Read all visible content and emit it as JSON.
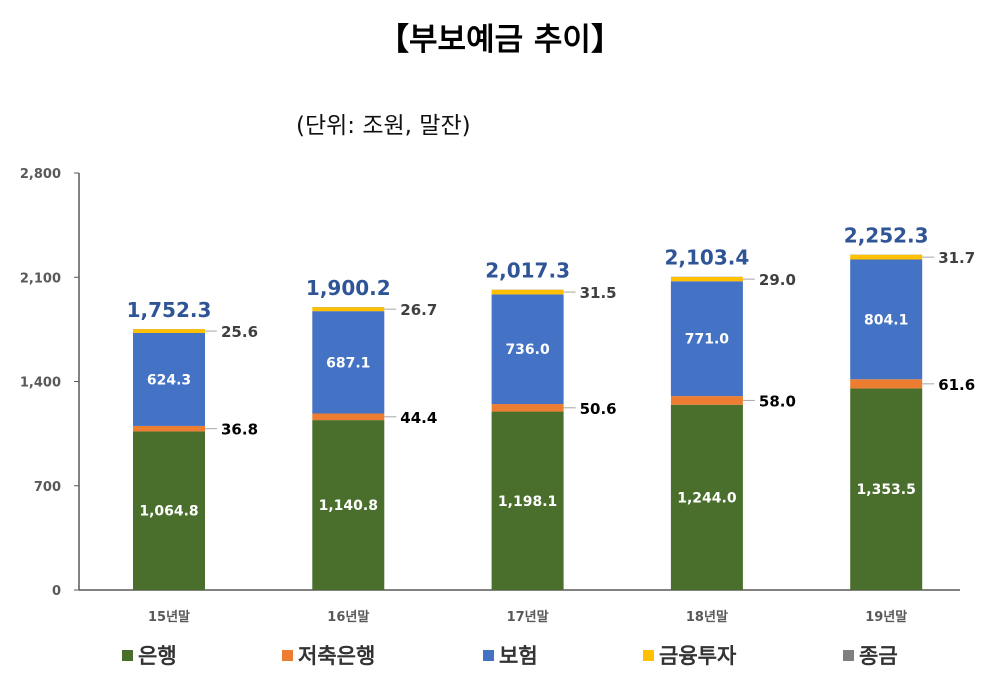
{
  "title": "【부보예금 추이】",
  "unit_note": "(단위: 조원, 말잔)",
  "chart_data": {
    "type": "bar",
    "stacked": true,
    "title": "【부보예금 추이】",
    "subtitle": "(단위: 조원, 말잔)",
    "categories": [
      "15년말",
      "16년말",
      "17년말",
      "18년말",
      "19년말"
    ],
    "ylim": [
      0,
      2800
    ],
    "yticks": [
      0,
      700,
      1400,
      2100,
      2800
    ],
    "ytick_labels": [
      "0",
      "700",
      "1,400",
      "2,100",
      "2,800"
    ],
    "grid": false,
    "legend_position": "bottom",
    "series": [
      {
        "name": "은행",
        "color": "#4a6f2c",
        "values": [
          1064.8,
          1140.8,
          1198.1,
          1244.0,
          1353.5
        ],
        "labels": [
          "1,064.8",
          "1,140.8",
          "1,198.1",
          "1,244.0",
          "1,353.5"
        ]
      },
      {
        "name": "저축은행",
        "color": "#ed7d31",
        "values": [
          36.8,
          44.4,
          50.6,
          58.0,
          61.6
        ],
        "labels": [
          "36.8",
          "44.4",
          "50.6",
          "58.0",
          "61.6"
        ]
      },
      {
        "name": "보험",
        "color": "#4472c4",
        "values": [
          624.3,
          687.1,
          736.0,
          771.0,
          804.1
        ],
        "labels": [
          "624.3",
          "687.1",
          "736.0",
          "771.0",
          "804.1"
        ]
      },
      {
        "name": "금융투자",
        "color": "#ffc000",
        "values": [
          25.6,
          26.7,
          31.5,
          29.0,
          31.7
        ],
        "labels": [
          "25.6",
          "26.7",
          "31.5",
          "29.0",
          "31.7"
        ]
      },
      {
        "name": "종금",
        "color": "#7f7f7f",
        "values": [
          0.8,
          1.2,
          1.1,
          1.4,
          1.4
        ]
      }
    ],
    "totals": [
      1752.3,
      1900.2,
      2017.3,
      2103.4,
      2252.3
    ],
    "total_labels": [
      "1,752.3",
      "1,900.2",
      "2,017.3",
      "2,103.4",
      "2,252.3"
    ],
    "total_label_color": "#2f5597"
  }
}
